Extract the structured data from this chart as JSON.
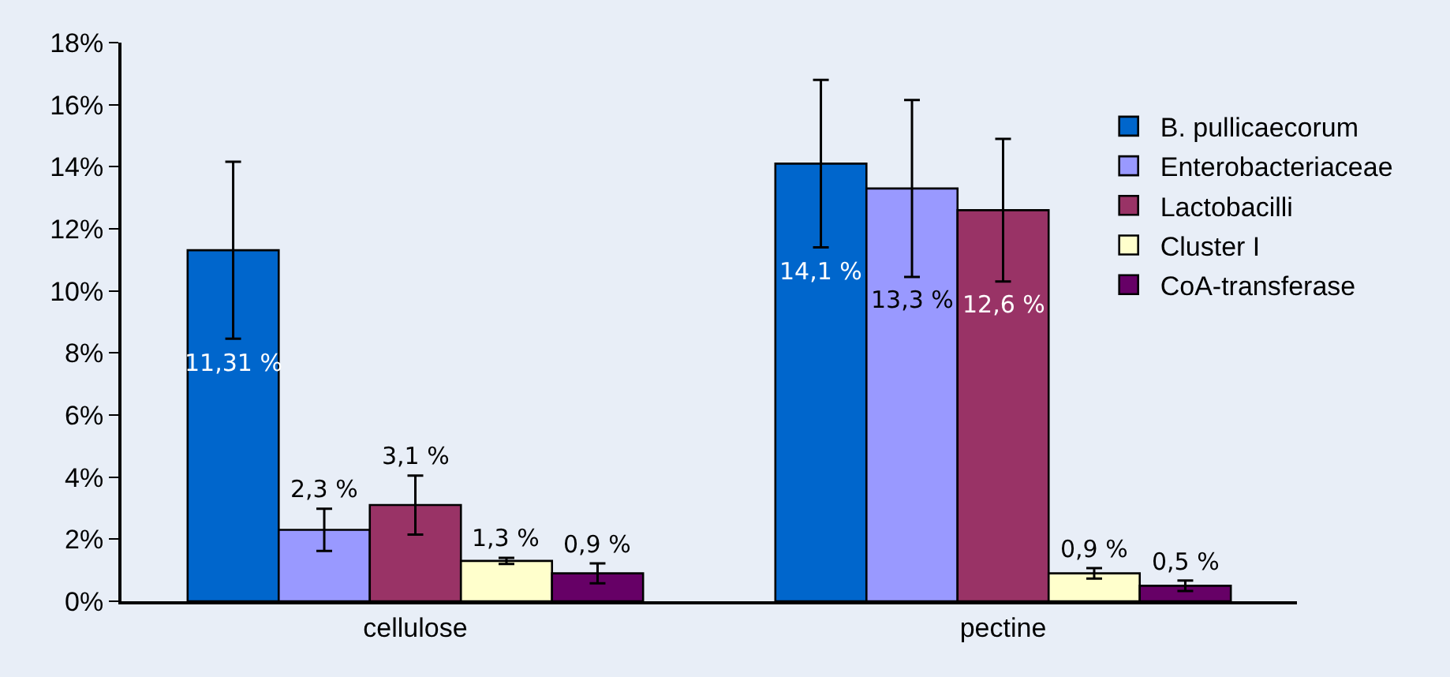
{
  "chart_data": {
    "type": "bar",
    "categories": [
      "cellulose",
      "pectine"
    ],
    "series": [
      {
        "name": "B. pullicaecorum",
        "color": "#0066cc",
        "values": [
          11.31,
          14.1
        ],
        "errors": [
          2.85,
          2.7
        ],
        "value_labels": [
          "11,31 %",
          "14,1 %"
        ]
      },
      {
        "name": "Enterobacteriaceae",
        "color": "#9999ff",
        "values": [
          2.3,
          13.3
        ],
        "errors": [
          0.68,
          2.85
        ],
        "value_labels": [
          "2,3 %",
          "13,3 %"
        ]
      },
      {
        "name": "Lactobacilli",
        "color": "#993366",
        "values": [
          3.1,
          12.6
        ],
        "errors": [
          0.95,
          2.3
        ],
        "value_labels": [
          "3,1 %",
          "12,6 %"
        ]
      },
      {
        "name": "Cluster I",
        "color": "#ffffcc",
        "values": [
          1.3,
          0.9
        ],
        "errors": [
          0.1,
          0.17
        ],
        "value_labels": [
          "1,3 %",
          "0,9 %"
        ]
      },
      {
        "name": "CoA-transferase",
        "color": "#660066",
        "values": [
          0.9,
          0.5
        ],
        "errors": [
          0.32,
          0.17
        ],
        "value_labels": [
          "0,9 %",
          "0,5 %"
        ]
      }
    ],
    "ylim": [
      0,
      18
    ],
    "yticks": [
      {
        "value": 0,
        "label": "0%"
      },
      {
        "value": 2,
        "label": "2%"
      },
      {
        "value": 4,
        "label": "4%"
      },
      {
        "value": 6,
        "label": "6%"
      },
      {
        "value": 8,
        "label": "8%"
      },
      {
        "value": 10,
        "label": "10%"
      },
      {
        "value": 12,
        "label": "12%"
      },
      {
        "value": 14,
        "label": "14%"
      },
      {
        "value": 16,
        "label": "16%"
      },
      {
        "value": 18,
        "label": "18%"
      }
    ],
    "grid": false,
    "legend": "right"
  }
}
